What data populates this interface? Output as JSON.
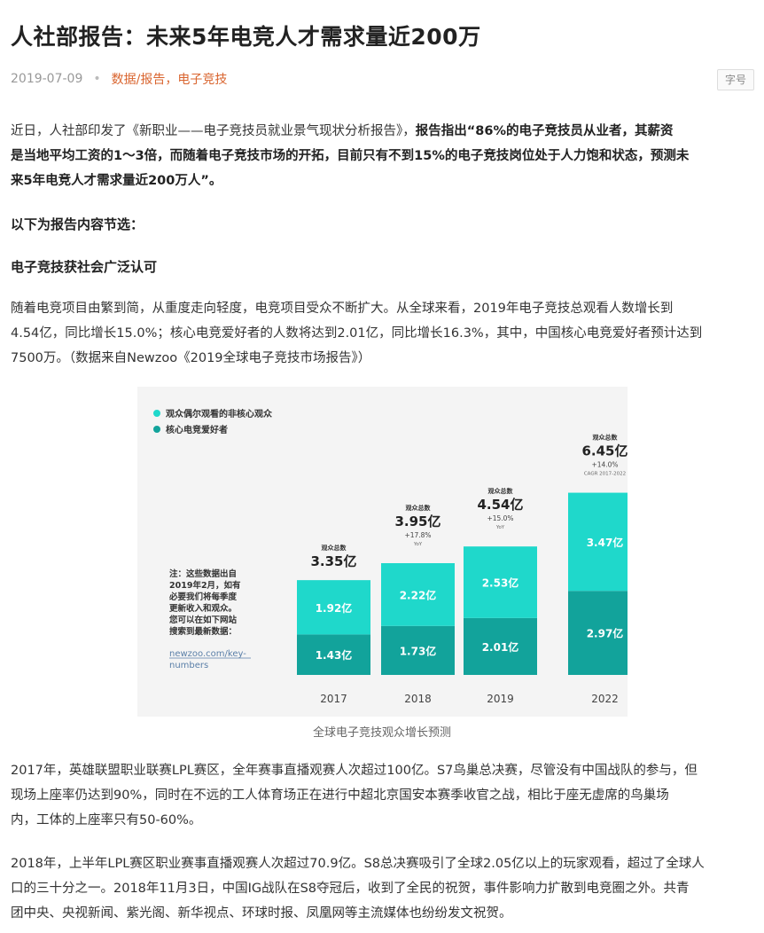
{
  "article": {
    "title": "人社部报告：未来5年电竞人才需求量近200万",
    "date": "2019-07-09",
    "separator": "•",
    "tags": "数据/报告，电子竞技",
    "font_size_label": "字号"
  },
  "content": {
    "p1_intro": "近日，人社部印发了《新职业——电子竞技员就业景气现状分析报告》，",
    "p1_bold_line1": "报告指出“86%的电子竞技员从业者，其薪资",
    "p1_bold_line2": "是当地平均工资的1～3倍，而随着电子竞技市场的开拓，目前只有不到15%的电子竞技岗位处于人力饱和状态，预测未",
    "p1_bold_line3": "来5年电竞人才需求量近200万人”。",
    "p2_bold": "以下为报告内容节选：",
    "h_section": "电子竞技获社会广泛认可",
    "p3_line1": "随着电竞项目由繁到简，从重度走向轻度，电竞项目受众不断扩大。从全球来看，2019年电子竞技总观看人数增长到",
    "p3_line2": "4.54亿，同比增长15.0%；核心电竞爱好者的人数将达到2.01亿，同比增长16.3%，其中，中国核心电竞爱好者预计达到",
    "p3_line3": "7500万。（数据来自Newzoo《2019全球电子竞技市场报告》）",
    "caption": "全球电子竞技观众增长预测",
    "p4_line1": "2017年，英雄联盟职业联赛LPL赛区，全年赛事直播观赛人次超过100亿。S7鸟巢总决赛，尽管没有中国战队的参与，但",
    "p4_line2": "现场上座率仍达到90%，同时在不远的工人体育场正在进行中超北京国安本赛季收官之战，相比于座无虚席的鸟巢场",
    "p4_line3": "内，工体的上座率只有50-60%。",
    "p5_line1": "2018年，上半年LPL赛区职业赛事直播观赛人次超过70.9亿。S8总决赛吸引了全球2.05亿以上的玩家观看，超过了全球人",
    "p5_line2": "口的三十分之一。2018年11月3日，中国IG战队在S8夺冠后，收到了全民的祝贺，事件影响力扩散到电竞圈之外。共青",
    "p5_line3": "团中央、央视新闻、紫光阁、新华视点、环球时报、凤凰网等主流媒体也纷纷发文祝贺。"
  },
  "chart_data": {
    "type": "bar",
    "stacked": true,
    "categories": [
      "2017",
      "2018",
      "2019",
      "2022"
    ],
    "series": [
      {
        "name": "核心电竞爱好者",
        "color": "#12a39b",
        "values": [
          1.43,
          1.73,
          2.01,
          2.97
        ],
        "labels": [
          "1.43亿",
          "1.73亿",
          "2.01亿",
          "2.97亿"
        ]
      },
      {
        "name": "观众偶尔观看的非核心观众",
        "color": "#1fd8cb",
        "values": [
          1.92,
          2.22,
          2.53,
          3.47
        ],
        "labels": [
          "1.92亿",
          "2.22亿",
          "2.53亿",
          "3.47亿"
        ]
      }
    ],
    "legend_order": [
      "观众偶尔观看的非核心观众",
      "核心电竞爱好者"
    ],
    "totals": [
      {
        "label": "观众总数",
        "value": "3.35亿",
        "growth": "",
        "growth_sub": ""
      },
      {
        "label": "观众总数",
        "value": "3.95亿",
        "growth": "+17.8%",
        "growth_sub": "YoY"
      },
      {
        "label": "观众总数",
        "value": "4.54亿",
        "growth": "+15.0%",
        "growth_sub": "YoY"
      },
      {
        "label": "观众总数",
        "value": "6.45亿",
        "growth": "+14.0%",
        "growth_sub": "CAGR 2017-2022"
      }
    ],
    "note_lines": [
      "注：这些数据出自",
      "2019年2月，如有",
      "必要我们将每季度",
      "更新收入和观众。",
      "您可以在如下网站",
      "搜索到最新数据："
    ],
    "link_lines": [
      "newzoo.com/key-",
      "numbers"
    ],
    "legend_position": "top-left",
    "grid": false
  }
}
